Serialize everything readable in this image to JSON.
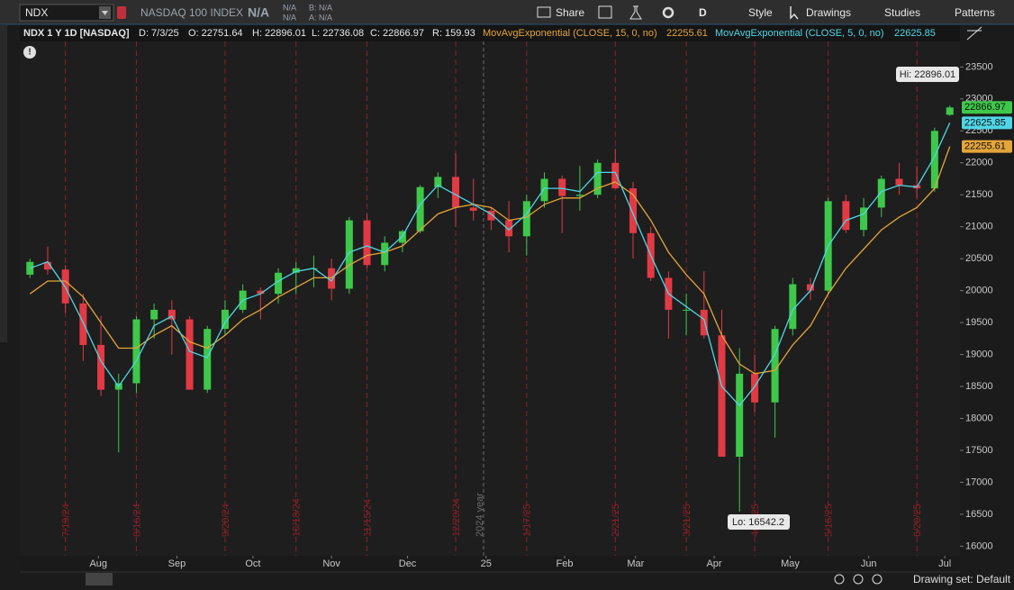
{
  "toolbar": {
    "symbol": "NDX",
    "description": "NASDAQ 100 INDEX",
    "last": "N/A",
    "change": "N/A",
    "change_pct": "N/A",
    "bid": "B: N/A",
    "ask": "A: N/A",
    "buttons": [
      "Share",
      "D",
      "Style",
      "Drawings",
      "Studies",
      "Patterns"
    ]
  },
  "info_bar": {
    "title": "NDX 1 Y 1D [NASDAQ]",
    "date": "D: 7/3/25",
    "open": "O: 22751.64",
    "high": "H: 22896.01",
    "low": "L: 22736.08",
    "close": "C: 22866.97",
    "range": "R: 159.93"
  },
  "chart_data": {
    "type": "candlestick",
    "x": [
      "2024-07-05",
      "2024-07-12",
      "2024-07-19",
      "2024-07-26",
      "2024-08-02",
      "2024-08-09",
      "2024-08-16",
      "2024-08-23",
      "2024-08-30",
      "2024-09-06",
      "2024-09-13",
      "2024-09-20",
      "2024-09-27",
      "2024-10-04",
      "2024-10-11",
      "2024-10-18",
      "2024-10-25",
      "2024-11-01",
      "2024-11-08",
      "2024-11-15",
      "2024-11-22",
      "2024-11-29",
      "2024-12-06",
      "2024-12-13",
      "2024-12-20",
      "2024-12-27",
      "2025-01-03",
      "2025-01-10",
      "2025-01-17",
      "2025-01-24",
      "2025-01-31",
      "2025-02-07",
      "2025-02-14",
      "2025-02-21",
      "2025-02-28",
      "2025-03-07",
      "2025-03-14",
      "2025-03-21",
      "2025-03-28",
      "2025-04-04",
      "2025-04-11",
      "2025-04-17",
      "2025-04-25",
      "2025-05-02",
      "2025-05-09",
      "2025-05-16",
      "2025-05-23",
      "2025-05-30",
      "2025-06-06",
      "2025-06-13",
      "2025-06-20",
      "2025-06-27",
      "2025-07-03"
    ],
    "open": [
      20250,
      20450,
      20330,
      19800,
      19150,
      18450,
      18550,
      19550,
      19700,
      19550,
      18450,
      19400,
      19700,
      20000,
      19950,
      20280,
      20350,
      20350,
      20030,
      21100,
      20400,
      20750,
      20930,
      21620,
      21780,
      21300,
      21250,
      21100,
      20850,
      21400,
      21750,
      21480,
      21500,
      22000,
      21600,
      20900,
      20200,
      19700,
      19700,
      19300,
      17400,
      18700,
      18250,
      19400,
      20100,
      20000,
      21400,
      20950,
      21300,
      21750,
      21650,
      21600,
      22751.64
    ],
    "high": [
      20500,
      20690,
      20400,
      19950,
      19600,
      18700,
      19600,
      19800,
      19850,
      19600,
      19450,
      19850,
      20100,
      20050,
      20350,
      20450,
      20550,
      20500,
      21150,
      21200,
      20850,
      20950,
      21650,
      21850,
      22150,
      21750,
      21300,
      21400,
      21500,
      21850,
      21800,
      21950,
      22050,
      22220,
      21700,
      21000,
      20300,
      19950,
      20300,
      19700,
      19100,
      19000,
      19450,
      20200,
      20200,
      21450,
      21500,
      21450,
      21800,
      22000,
      21950,
      22550,
      22896.01
    ],
    "low": [
      20200,
      20250,
      19650,
      18900,
      18350,
      17470,
      18400,
      19250,
      19000,
      18450,
      18400,
      19300,
      19650,
      19550,
      19800,
      19950,
      20050,
      19850,
      19950,
      20350,
      20300,
      20600,
      20900,
      21450,
      21000,
      21100,
      20950,
      20600,
      20550,
      21300,
      20900,
      21250,
      21450,
      21600,
      20500,
      20150,
      19250,
      19300,
      19250,
      17400,
      16542.2,
      18100,
      17700,
      19300,
      19850,
      19950,
      20900,
      20850,
      21150,
      21500,
      21450,
      21550,
      22736.08
    ],
    "close": [
      20450,
      20330,
      19800,
      19150,
      18450,
      18550,
      19550,
      19700,
      19550,
      18450,
      19400,
      19700,
      20000,
      19950,
      20280,
      20350,
      20350,
      20030,
      21100,
      20400,
      20750,
      20930,
      21620,
      21780,
      21300,
      21250,
      21100,
      20850,
      21400,
      21750,
      21480,
      21500,
      22000,
      21600,
      20900,
      20200,
      19700,
      19700,
      19300,
      17400,
      18700,
      18250,
      19400,
      20100,
      20000,
      21400,
      20950,
      21300,
      21750,
      21650,
      21600,
      22500,
      22866.97
    ],
    "up_color": "#3ec84a",
    "down_color": "#e23a44",
    "series": [
      {
        "name": "MovAvgExponential (CLOSE, 15, 0, no)",
        "color": "#e3a53a",
        "values": [
          19950,
          20150,
          20150,
          19900,
          19500,
          19100,
          19100,
          19300,
          19450,
          19200,
          19100,
          19300,
          19550,
          19700,
          19900,
          20050,
          20200,
          20200,
          20400,
          20550,
          20600,
          20700,
          20950,
          21200,
          21300,
          21350,
          21300,
          21100,
          21150,
          21350,
          21450,
          21450,
          21600,
          21700,
          21500,
          21100,
          20600,
          20250,
          19950,
          19300,
          18850,
          18700,
          18750,
          19150,
          19450,
          19950,
          20350,
          20650,
          20950,
          21150,
          21300,
          21600,
          22255.61
        ]
      },
      {
        "name": "MovAvgExponential (CLOSE, 5, 0, no)",
        "color": "#4fd6e6",
        "values": [
          20350,
          20450,
          20050,
          19500,
          18900,
          18500,
          18900,
          19450,
          19600,
          19050,
          18950,
          19500,
          19850,
          19950,
          20150,
          20300,
          20350,
          20150,
          20600,
          20700,
          20600,
          20850,
          21350,
          21650,
          21500,
          21350,
          21200,
          20950,
          21200,
          21600,
          21600,
          21550,
          21850,
          21850,
          21200,
          20550,
          19950,
          19750,
          19550,
          18500,
          18200,
          18500,
          19000,
          19700,
          20000,
          20700,
          21100,
          21200,
          21550,
          21650,
          21620,
          22100,
          22625.85
        ]
      }
    ],
    "xlim": [
      "2024-07-01",
      "2025-07-07"
    ],
    "xticks": [
      {
        "value": "2024-08-01",
        "label": "Aug"
      },
      {
        "value": "2024-09-01",
        "label": "Sep"
      },
      {
        "value": "2024-10-01",
        "label": "Oct"
      },
      {
        "value": "2024-11-01",
        "label": "Nov"
      },
      {
        "value": "2024-12-01",
        "label": "Dec"
      },
      {
        "value": "2025-01-01",
        "label": "25"
      },
      {
        "value": "2025-02-01",
        "label": "Feb"
      },
      {
        "value": "2025-03-01",
        "label": "Mar"
      },
      {
        "value": "2025-04-01",
        "label": "Apr"
      },
      {
        "value": "2025-05-01",
        "label": "May"
      },
      {
        "value": "2025-06-01",
        "label": "Jun"
      },
      {
        "value": "2025-07-01",
        "label": "Jul"
      }
    ],
    "ylim": [
      15850,
      23900
    ],
    "yticks": [
      16000,
      16500,
      17000,
      17500,
      18000,
      18500,
      19000,
      19500,
      20000,
      20500,
      21000,
      21500,
      22000,
      22500,
      23000,
      23500
    ],
    "event_lines": {
      "color": "#8a2028",
      "items": [
        {
          "x": "2024-07-19",
          "label": "7/19/24"
        },
        {
          "x": "2024-08-16",
          "label": "8/16/24"
        },
        {
          "x": "2024-09-20",
          "label": "9/20/24"
        },
        {
          "x": "2024-10-18",
          "label": "10/18/24"
        },
        {
          "x": "2024-11-15",
          "label": "11/15/24"
        },
        {
          "x": "2024-12-20",
          "label": "12/20/24"
        },
        {
          "x": "2025-01-17",
          "label": "1/17/25"
        },
        {
          "x": "2025-02-21",
          "label": "2/21/25"
        },
        {
          "x": "2025-03-21",
          "label": "3/21/25"
        },
        {
          "x": "2025-04-17",
          "label": "4/17/25"
        },
        {
          "x": "2025-05-16",
          "label": "5/16/25"
        },
        {
          "x": "2025-06-20",
          "label": "6/20/25"
        }
      ]
    },
    "year_line": {
      "x": "2024-12-31",
      "label": "2024 year",
      "color": "#6a6a6a"
    },
    "annotations": {
      "high": "Hi: 22896.01",
      "low": "Lo: 16542.2"
    }
  },
  "status_bar": {
    "drawing_set": "Drawing set: Default"
  }
}
